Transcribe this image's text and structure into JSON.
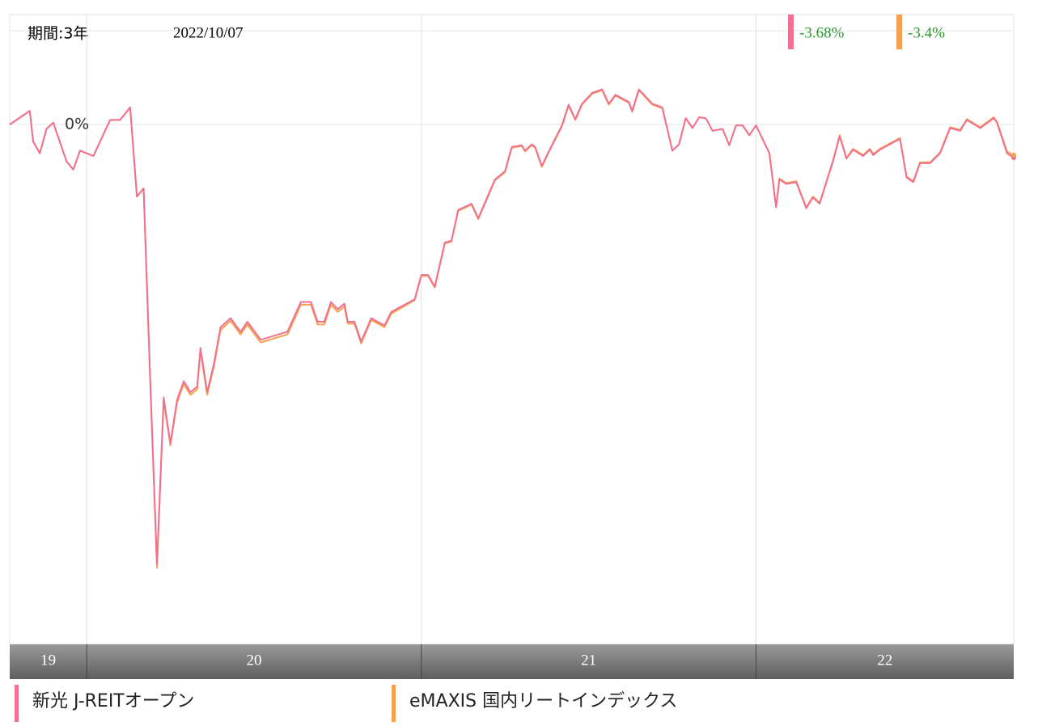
{
  "chart_data": {
    "type": "line",
    "period_label": "期間:3年",
    "date": "2022/10/07",
    "x": [
      19.77,
      19.83,
      19.84,
      19.86,
      19.88,
      19.9,
      19.94,
      19.96,
      19.98,
      20.02,
      20.07,
      20.1,
      20.13,
      20.15,
      20.17,
      20.19,
      20.21,
      20.23,
      20.25,
      20.27,
      20.29,
      20.31,
      20.33,
      20.34,
      20.36,
      20.38,
      20.4,
      20.43,
      20.46,
      20.48,
      20.52,
      20.6,
      20.64,
      20.67,
      20.69,
      20.71,
      20.73,
      20.75,
      20.77,
      20.78,
      20.8,
      20.82,
      20.85,
      20.89,
      20.91,
      20.98,
      21.0,
      21.02,
      21.04,
      21.07,
      21.09,
      21.11,
      21.15,
      21.17,
      21.22,
      21.25,
      21.27,
      21.3,
      21.31,
      21.33,
      21.34,
      21.36,
      21.39,
      21.42,
      21.44,
      21.46,
      21.48,
      21.51,
      21.54,
      21.56,
      21.58,
      21.62,
      21.63,
      21.65,
      21.69,
      21.72,
      21.75,
      21.77,
      21.79,
      21.81,
      21.83,
      21.85,
      21.87,
      21.9,
      21.92,
      21.94,
      21.96,
      21.98,
      22.0,
      22.04,
      22.06,
      22.07,
      22.09,
      22.12,
      22.15,
      22.17,
      22.19,
      22.23,
      22.25,
      22.27,
      22.29,
      22.32,
      22.34,
      22.35,
      22.37,
      22.43,
      22.45,
      22.47,
      22.49,
      22.52,
      22.55,
      22.58,
      22.61,
      22.63,
      22.67,
      22.71,
      22.72,
      22.75,
      22.77
    ],
    "series": [
      {
        "name": "新光 J-REITオープン",
        "color": "#f07090",
        "values": [
          0.0,
          1.5,
          -1.9,
          -3.2,
          -0.5,
          0.2,
          -4.1,
          -5.0,
          -2.9,
          -3.5,
          0.5,
          0.5,
          1.9,
          -8.0,
          -7.1,
          -28.4,
          -48.8,
          -30.3,
          -35.4,
          -30.6,
          -28.5,
          -29.7,
          -29.1,
          -24.8,
          -29.7,
          -26.6,
          -22.5,
          -21.5,
          -23.0,
          -21.9,
          -23.9,
          -23.0,
          -19.7,
          -19.7,
          -21.9,
          -21.9,
          -19.7,
          -20.5,
          -19.9,
          -21.9,
          -21.9,
          -24.1,
          -21.5,
          -22.3,
          -20.8,
          -19.4,
          -16.7,
          -16.7,
          -18.0,
          -13.1,
          -12.9,
          -9.5,
          -8.8,
          -10.4,
          -6.1,
          -5.2,
          -2.5,
          -2.3,
          -2.9,
          -2.2,
          -2.5,
          -4.6,
          -2.3,
          -0.1,
          2.2,
          0.6,
          2.3,
          3.5,
          3.9,
          2.3,
          3.3,
          2.5,
          1.5,
          3.9,
          2.3,
          1.9,
          -2.9,
          -2.2,
          0.7,
          -0.4,
          0.8,
          0.7,
          -0.7,
          -0.5,
          -2.3,
          -0.1,
          -0.1,
          -1.2,
          -0.1,
          -3.2,
          -9.2,
          -6.1,
          -6.6,
          -6.4,
          -9.3,
          -8.1,
          -8.8,
          -4.1,
          -1.3,
          -3.8,
          -2.8,
          -3.5,
          -2.8,
          -3.4,
          -2.8,
          -1.6,
          -5.9,
          -6.4,
          -4.3,
          -4.3,
          -3.2,
          -0.4,
          -0.7,
          0.5,
          -0.4,
          0.7,
          0.2,
          -3.2,
          -3.68
        ],
        "value_labels": [
          null,
          null,
          null,
          null,
          null,
          null,
          null,
          null,
          null,
          null,
          null,
          null,
          null,
          null,
          null,
          null,
          null,
          null,
          null,
          null,
          null,
          null,
          null,
          null,
          null,
          null,
          null,
          null,
          null,
          null,
          null,
          null,
          null,
          null,
          null,
          null,
          null,
          null,
          null,
          null,
          null,
          null,
          null,
          null,
          null,
          null,
          null,
          null,
          null,
          null,
          null,
          null,
          null,
          null,
          null,
          null,
          null,
          null,
          null,
          null,
          null,
          null,
          null,
          null,
          null,
          null,
          null,
          null,
          null,
          null,
          null,
          null,
          null,
          null,
          null,
          null,
          null,
          null,
          null,
          null,
          null,
          null,
          null,
          null,
          null,
          null,
          null,
          null,
          null,
          null,
          null,
          null,
          null,
          null,
          null,
          null,
          null,
          null,
          null,
          null,
          null,
          null,
          null,
          null,
          null,
          null,
          null,
          null,
          null,
          null,
          null,
          null,
          null,
          null,
          null,
          null,
          null,
          null,
          "-3.68%"
        ]
      },
      {
        "name": "eMAXIS 国内リートインデックス",
        "color": "#f5a050",
        "values": [
          0.0,
          1.5,
          -1.9,
          -3.2,
          -0.5,
          0.2,
          -4.1,
          -5.0,
          -2.9,
          -3.5,
          0.5,
          0.5,
          1.9,
          -8.0,
          -7.1,
          -28.6,
          -49.2,
          -30.6,
          -35.6,
          -30.9,
          -28.8,
          -30.0,
          -29.4,
          -25.1,
          -30.0,
          -26.9,
          -22.8,
          -21.8,
          -23.3,
          -22.2,
          -24.2,
          -23.3,
          -20.0,
          -20.0,
          -22.2,
          -22.2,
          -20.0,
          -20.8,
          -20.2,
          -22.1,
          -22.1,
          -24.3,
          -21.7,
          -22.5,
          -21.0,
          -19.5,
          -16.8,
          -16.8,
          -18.1,
          -13.2,
          -13.0,
          -9.6,
          -8.9,
          -10.5,
          -6.2,
          -5.3,
          -2.6,
          -2.4,
          -3.0,
          -2.3,
          -2.6,
          -4.7,
          -2.4,
          -0.2,
          2.1,
          0.5,
          2.2,
          3.4,
          3.8,
          2.2,
          3.2,
          2.4,
          1.4,
          3.8,
          2.2,
          1.8,
          -2.9,
          -2.2,
          0.7,
          -0.4,
          0.8,
          0.7,
          -0.7,
          -0.5,
          -2.3,
          -0.1,
          -0.1,
          -1.2,
          -0.1,
          -3.2,
          -9.1,
          -6.0,
          -6.5,
          -6.3,
          -9.2,
          -8.0,
          -8.7,
          -4.0,
          -1.2,
          -3.7,
          -2.7,
          -3.4,
          -2.7,
          -3.3,
          -2.7,
          -1.5,
          -5.8,
          -6.3,
          -4.2,
          -4.2,
          -3.1,
          -0.3,
          -0.6,
          0.6,
          -0.3,
          0.8,
          0.3,
          -3.0,
          -3.4
        ],
        "value_labels": [
          null,
          null,
          null,
          null,
          null,
          null,
          null,
          null,
          null,
          null,
          null,
          null,
          null,
          null,
          null,
          null,
          null,
          null,
          null,
          null,
          null,
          null,
          null,
          null,
          null,
          null,
          null,
          null,
          null,
          null,
          null,
          null,
          null,
          null,
          null,
          null,
          null,
          null,
          null,
          null,
          null,
          null,
          null,
          null,
          null,
          null,
          null,
          null,
          null,
          null,
          null,
          null,
          null,
          null,
          null,
          null,
          null,
          null,
          null,
          null,
          null,
          null,
          null,
          null,
          null,
          null,
          null,
          null,
          null,
          null,
          null,
          null,
          null,
          null,
          null,
          null,
          null,
          null,
          null,
          null,
          null,
          null,
          null,
          null,
          null,
          null,
          null,
          null,
          null,
          null,
          null,
          null,
          null,
          null,
          null,
          null,
          null,
          null,
          null,
          null,
          null,
          null,
          null,
          null,
          null,
          null,
          null,
          null,
          null,
          null,
          null,
          null,
          null,
          null,
          null,
          null,
          null,
          null,
          "-3.4%"
        ]
      }
    ],
    "xlim": [
      19.77,
      22.77
    ],
    "xticks": [
      20,
      21,
      22
    ],
    "year_labels": [
      "19",
      "20",
      "21",
      "22"
    ],
    "ylim": [
      -57.7,
      12.2
    ],
    "yticks": [
      {
        "value": 0,
        "label": "0%"
      }
    ],
    "grid": true,
    "label_color": "#2a9a2a"
  }
}
